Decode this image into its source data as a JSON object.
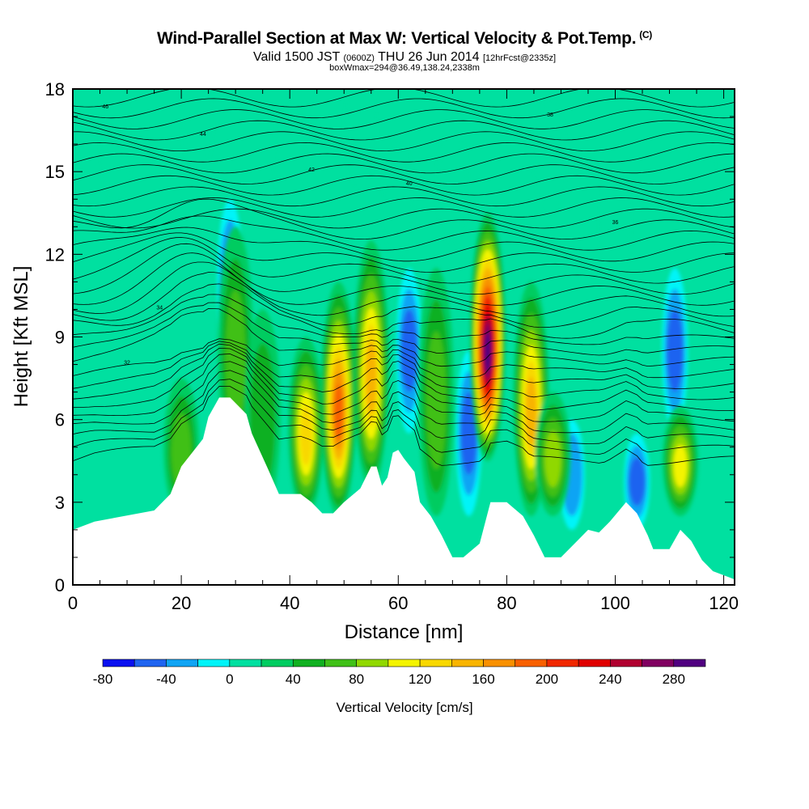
{
  "header": {
    "title": "Wind-Parallel Section at Max W: Vertical Velocity & Pot.Temp.",
    "copyright": "(C)",
    "valid_prefix": "Valid 1500 JST",
    "valid_utc": "(0600Z)",
    "valid_date": "THU 26 Jun 2014",
    "forecast": "[12hrFcst@2335z]",
    "box_info": "boxWmax=294@36.49,138.24,2338m"
  },
  "chart_data": {
    "type": "heatmap",
    "title": "Wind-Parallel Section at Max W: Vertical Velocity & Pot.Temp.",
    "xlabel": "Distance [nm]",
    "ylabel": "Height [Kft MSL]",
    "xlim": [
      0,
      122
    ],
    "ylim": [
      0,
      18
    ],
    "xticks": [
      0,
      20,
      40,
      60,
      80,
      100,
      120
    ],
    "yticks": [
      0,
      3,
      6,
      9,
      12,
      15,
      18
    ],
    "background_w": 0,
    "updrafts": [
      {
        "x": 20,
        "ytop": 7.5,
        "w": 60
      },
      {
        "x": 30,
        "ytop": 13.0,
        "w": 70
      },
      {
        "x": 35,
        "ytop": 10.0,
        "w": 40
      },
      {
        "x": 43,
        "ytop": 9.0,
        "w": 120
      },
      {
        "x": 49,
        "ytop": 11.0,
        "w": 180
      },
      {
        "x": 55,
        "ytop": 12.5,
        "w": 150
      },
      {
        "x": 67,
        "ytop": 11.5,
        "w": 60
      },
      {
        "x": 76.5,
        "ytop": 13.5,
        "w": 294
      },
      {
        "x": 84.5,
        "ytop": 11.0,
        "w": 150
      },
      {
        "x": 88.5,
        "ytop": 7.0,
        "w": 80
      },
      {
        "x": 112,
        "ytop": 6.5,
        "w": 100
      }
    ],
    "downdrafts": [
      {
        "x": 29,
        "ytop": 14.0,
        "w": -40
      },
      {
        "x": 62,
        "ytop": 11.5,
        "w": -60
      },
      {
        "x": 73,
        "ytop": 8.5,
        "w": -70
      },
      {
        "x": 92,
        "ytop": 6.0,
        "w": -50
      },
      {
        "x": 104,
        "ytop": 5.5,
        "w": -60
      },
      {
        "x": 111,
        "ytop": 11.5,
        "w": -60
      }
    ],
    "terrain": {
      "x": [
        0,
        4,
        15,
        18,
        20,
        24,
        25,
        27,
        29,
        32,
        33,
        36,
        38,
        40,
        42,
        44,
        46,
        48,
        50,
        53,
        55,
        56,
        57,
        58,
        59,
        60,
        61,
        63,
        64,
        66,
        68,
        70,
        72,
        75,
        77,
        80,
        83,
        85,
        87,
        90,
        93,
        95,
        97,
        99,
        102,
        104,
        106,
        107,
        110,
        112,
        114,
        116,
        118,
        122
      ],
      "height_kft": [
        2.0,
        2.3,
        2.7,
        3.3,
        4.3,
        5.3,
        6.1,
        6.8,
        6.8,
        6.2,
        5.5,
        4.2,
        3.3,
        3.3,
        3.3,
        3.0,
        2.6,
        2.6,
        3.0,
        3.5,
        4.3,
        4.3,
        3.6,
        3.9,
        4.8,
        4.9,
        4.6,
        4.1,
        3.0,
        2.5,
        1.8,
        1.0,
        1.0,
        1.5,
        3.0,
        3.0,
        2.5,
        1.8,
        1.0,
        1.0,
        1.6,
        2.0,
        1.9,
        2.3,
        3.0,
        2.6,
        1.8,
        1.3,
        1.3,
        2.0,
        1.6,
        0.9,
        0.5,
        0.2
      ]
    },
    "isentrope_labels": [
      "46",
      "44",
      "42",
      "40",
      "38",
      "36",
      "34",
      "32"
    ],
    "colorbar": {
      "label": "Vertical Velocity [cm/s]",
      "tick_labels": [
        "-80",
        "-40",
        "0",
        "40",
        "80",
        "120",
        "160",
        "200",
        "240",
        "280"
      ],
      "levels": [
        -80,
        -60,
        -40,
        -20,
        0,
        20,
        40,
        60,
        80,
        100,
        120,
        140,
        160,
        180,
        200,
        220,
        240,
        260,
        280,
        300
      ],
      "colors": [
        "#0a10f0",
        "#1f64f0",
        "#10a4f4",
        "#00f4f8",
        "#00e0a0",
        "#00cc60",
        "#10b020",
        "#40c018",
        "#90d800",
        "#f4f400",
        "#f8d800",
        "#f8b400",
        "#f89000",
        "#f86000",
        "#f02800",
        "#e00000",
        "#b00030",
        "#800060",
        "#500080"
      ]
    }
  }
}
